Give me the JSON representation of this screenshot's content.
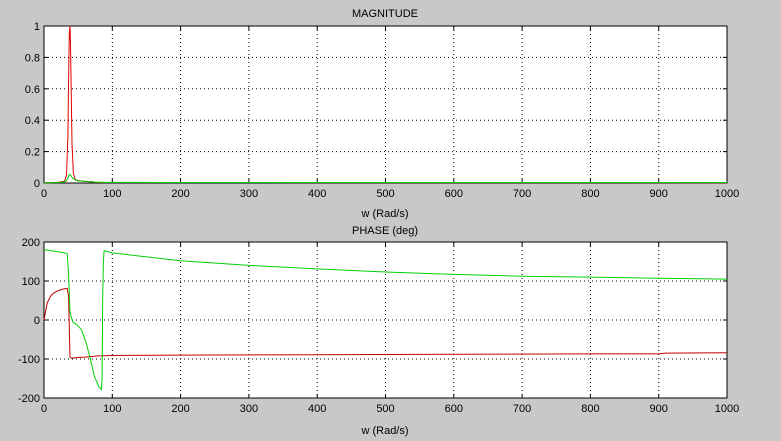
{
  "chart_data": [
    {
      "type": "line",
      "title": "MAGNITUDE",
      "xlabel": "w (Rad/s)",
      "ylabel": "",
      "xlim": [
        0,
        1000
      ],
      "ylim": [
        0,
        1
      ],
      "xticks": [
        0,
        100,
        200,
        300,
        400,
        500,
        600,
        700,
        800,
        900,
        1000
      ],
      "yticks": [
        0,
        0.2,
        0.4,
        0.6,
        0.8,
        1
      ],
      "ytick_labels": [
        "0",
        "0.2",
        "0.4",
        "0.6",
        "0.8",
        "1"
      ],
      "grid": true,
      "series": [
        {
          "color": "#e00000",
          "points": [
            [
              0,
              0.002
            ],
            [
              20,
              0.004
            ],
            [
              30,
              0.01
            ],
            [
              33,
              0.05
            ],
            [
              35,
              0.3
            ],
            [
              36,
              0.65
            ],
            [
              37,
              0.95
            ],
            [
              38,
              1.0
            ],
            [
              39,
              0.85
            ],
            [
              40,
              0.55
            ],
            [
              41,
              0.25
            ],
            [
              43,
              0.06
            ],
            [
              46,
              0.02
            ],
            [
              55,
              0.012
            ],
            [
              70,
              0.008
            ],
            [
              75,
              0.004
            ],
            [
              100,
              0.003
            ],
            [
              1000,
              0.002
            ]
          ]
        },
        {
          "color": "#00d000",
          "points": [
            [
              0,
              0.001
            ],
            [
              25,
              0.003
            ],
            [
              32,
              0.01
            ],
            [
              35,
              0.03
            ],
            [
              37,
              0.055
            ],
            [
              39,
              0.05
            ],
            [
              42,
              0.03
            ],
            [
              48,
              0.015
            ],
            [
              60,
              0.01
            ],
            [
              75,
              0.006
            ],
            [
              90,
              0.004
            ],
            [
              200,
              0.003
            ],
            [
              1000,
              0.003
            ]
          ]
        }
      ]
    },
    {
      "type": "line",
      "title": "PHASE (deg)",
      "xlabel": "w (Rad/s)",
      "ylabel": "",
      "xlim": [
        0,
        1000
      ],
      "ylim": [
        -200,
        200
      ],
      "xticks": [
        0,
        100,
        200,
        300,
        400,
        500,
        600,
        700,
        800,
        900,
        1000
      ],
      "yticks": [
        -200,
        -100,
        0,
        100,
        200
      ],
      "ytick_labels": [
        "-200",
        "-100",
        "0",
        "100",
        "200"
      ],
      "grid": true,
      "series": [
        {
          "color": "#c00000",
          "points": [
            [
              0,
              0
            ],
            [
              2,
              20
            ],
            [
              5,
              45
            ],
            [
              10,
              62
            ],
            [
              15,
              70
            ],
            [
              20,
              75
            ],
            [
              25,
              78
            ],
            [
              30,
              80
            ],
            [
              34,
              81
            ],
            [
              36,
              60
            ],
            [
              37,
              -20
            ],
            [
              38,
              -95
            ],
            [
              40,
              -98
            ],
            [
              50,
              -96
            ],
            [
              60,
              -95
            ],
            [
              80,
              -92
            ],
            [
              100,
              -91
            ],
            [
              200,
              -90
            ],
            [
              400,
              -89
            ],
            [
              600,
              -88
            ],
            [
              800,
              -87
            ],
            [
              900,
              -87
            ],
            [
              910,
              -85
            ],
            [
              1000,
              -84
            ]
          ]
        },
        {
          "color": "#00d000",
          "points": [
            [
              0,
              180
            ],
            [
              10,
              178
            ],
            [
              20,
              175
            ],
            [
              30,
              172
            ],
            [
              34,
              170
            ],
            [
              36,
              120
            ],
            [
              38,
              20
            ],
            [
              42,
              -5
            ],
            [
              48,
              -12
            ],
            [
              55,
              -25
            ],
            [
              62,
              -60
            ],
            [
              68,
              -100
            ],
            [
              74,
              -145
            ],
            [
              80,
              -170
            ],
            [
              84,
              -178
            ],
            [
              85,
              -150
            ],
            [
              86,
              60
            ],
            [
              87,
              150
            ],
            [
              88,
              178
            ],
            [
              100,
              172
            ],
            [
              200,
              152
            ],
            [
              300,
              140
            ],
            [
              400,
              131
            ],
            [
              500,
              123
            ],
            [
              600,
              117
            ],
            [
              700,
              112
            ],
            [
              800,
              110
            ],
            [
              900,
              107
            ],
            [
              1000,
              105
            ]
          ]
        }
      ]
    }
  ]
}
